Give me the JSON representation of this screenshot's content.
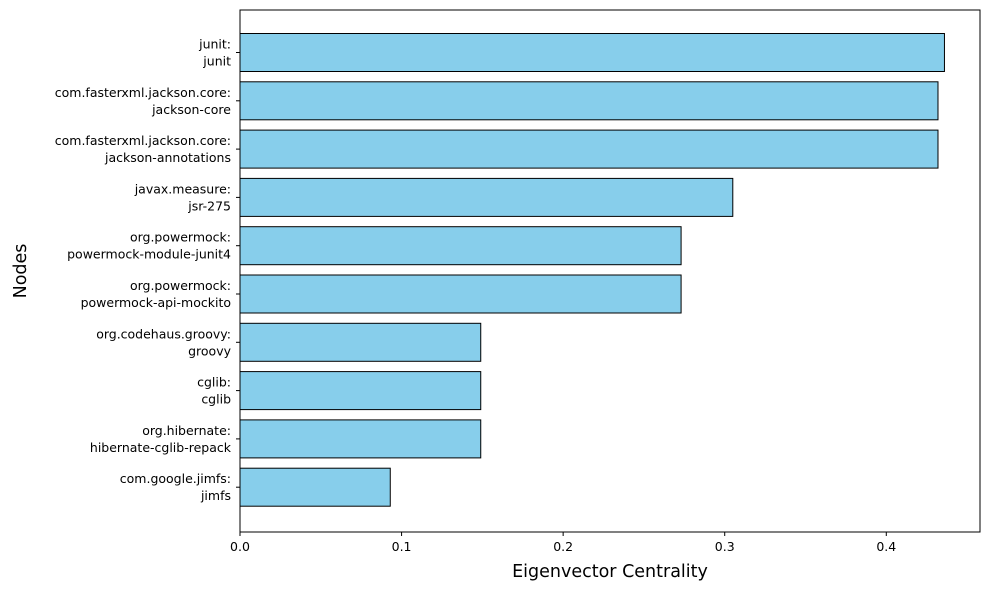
{
  "chart_data": {
    "type": "bar",
    "orientation": "horizontal",
    "title": "",
    "xlabel": "Eigenvector Centrality",
    "ylabel": "Nodes",
    "xlim": [
      0,
      0.458
    ],
    "xticks": [
      0.0,
      0.1,
      0.2,
      0.3,
      0.4
    ],
    "xtick_labels": [
      "0.0",
      "0.1",
      "0.2",
      "0.3",
      "0.4"
    ],
    "grid": false,
    "bar_color": "#87ceeb",
    "edge_color": "#000000",
    "categories": [
      [
        "junit:",
        "junit"
      ],
      [
        "com.fasterxml.jackson.core:",
        "jackson-core"
      ],
      [
        "com.fasterxml.jackson.core:",
        "jackson-annotations"
      ],
      [
        "javax.measure:",
        "jsr-275"
      ],
      [
        "org.powermock:",
        "powermock-module-junit4"
      ],
      [
        "org.powermock:",
        "powermock-api-mockito"
      ],
      [
        "org.codehaus.groovy:",
        "groovy"
      ],
      [
        "cglib:",
        "cglib"
      ],
      [
        "org.hibernate:",
        "hibernate-cglib-repack"
      ],
      [
        "com.google.jimfs:",
        "jimfs"
      ]
    ],
    "values": [
      0.436,
      0.432,
      0.432,
      0.305,
      0.273,
      0.273,
      0.149,
      0.149,
      0.149,
      0.093
    ]
  }
}
